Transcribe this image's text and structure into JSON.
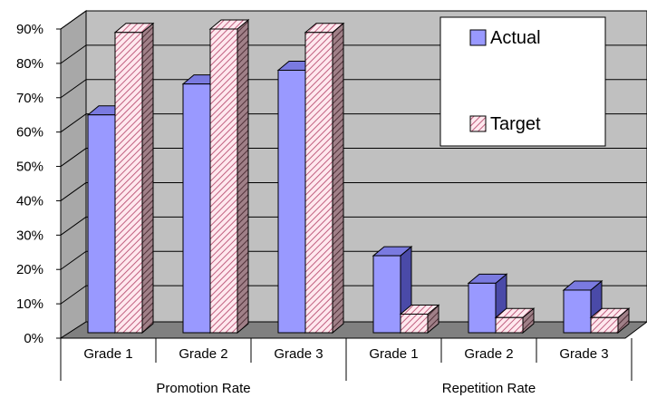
{
  "chart_data": {
    "type": "bar",
    "groups": [
      {
        "label": "Promotion Rate",
        "categories": [
          "Grade 1",
          "Grade 2",
          "Grade 3"
        ]
      },
      {
        "label": "Repetition Rate",
        "categories": [
          "Grade 1",
          "Grade 2",
          "Grade 3"
        ]
      }
    ],
    "series": [
      {
        "name": "Actual",
        "values": [
          65,
          74,
          78,
          24,
          16,
          14
        ],
        "color": "#9999ff"
      },
      {
        "name": "Target",
        "values": [
          89,
          90,
          89,
          7,
          6,
          6
        ],
        "color": "#ffccdd"
      }
    ],
    "ylim": [
      0,
      90
    ],
    "yticks": [
      "0%",
      "10%",
      "20%",
      "30%",
      "40%",
      "50%",
      "60%",
      "70%",
      "80%",
      "90%"
    ],
    "grid": true,
    "legend": "top-right",
    "background": "#c0c0c0",
    "three_d": true
  }
}
